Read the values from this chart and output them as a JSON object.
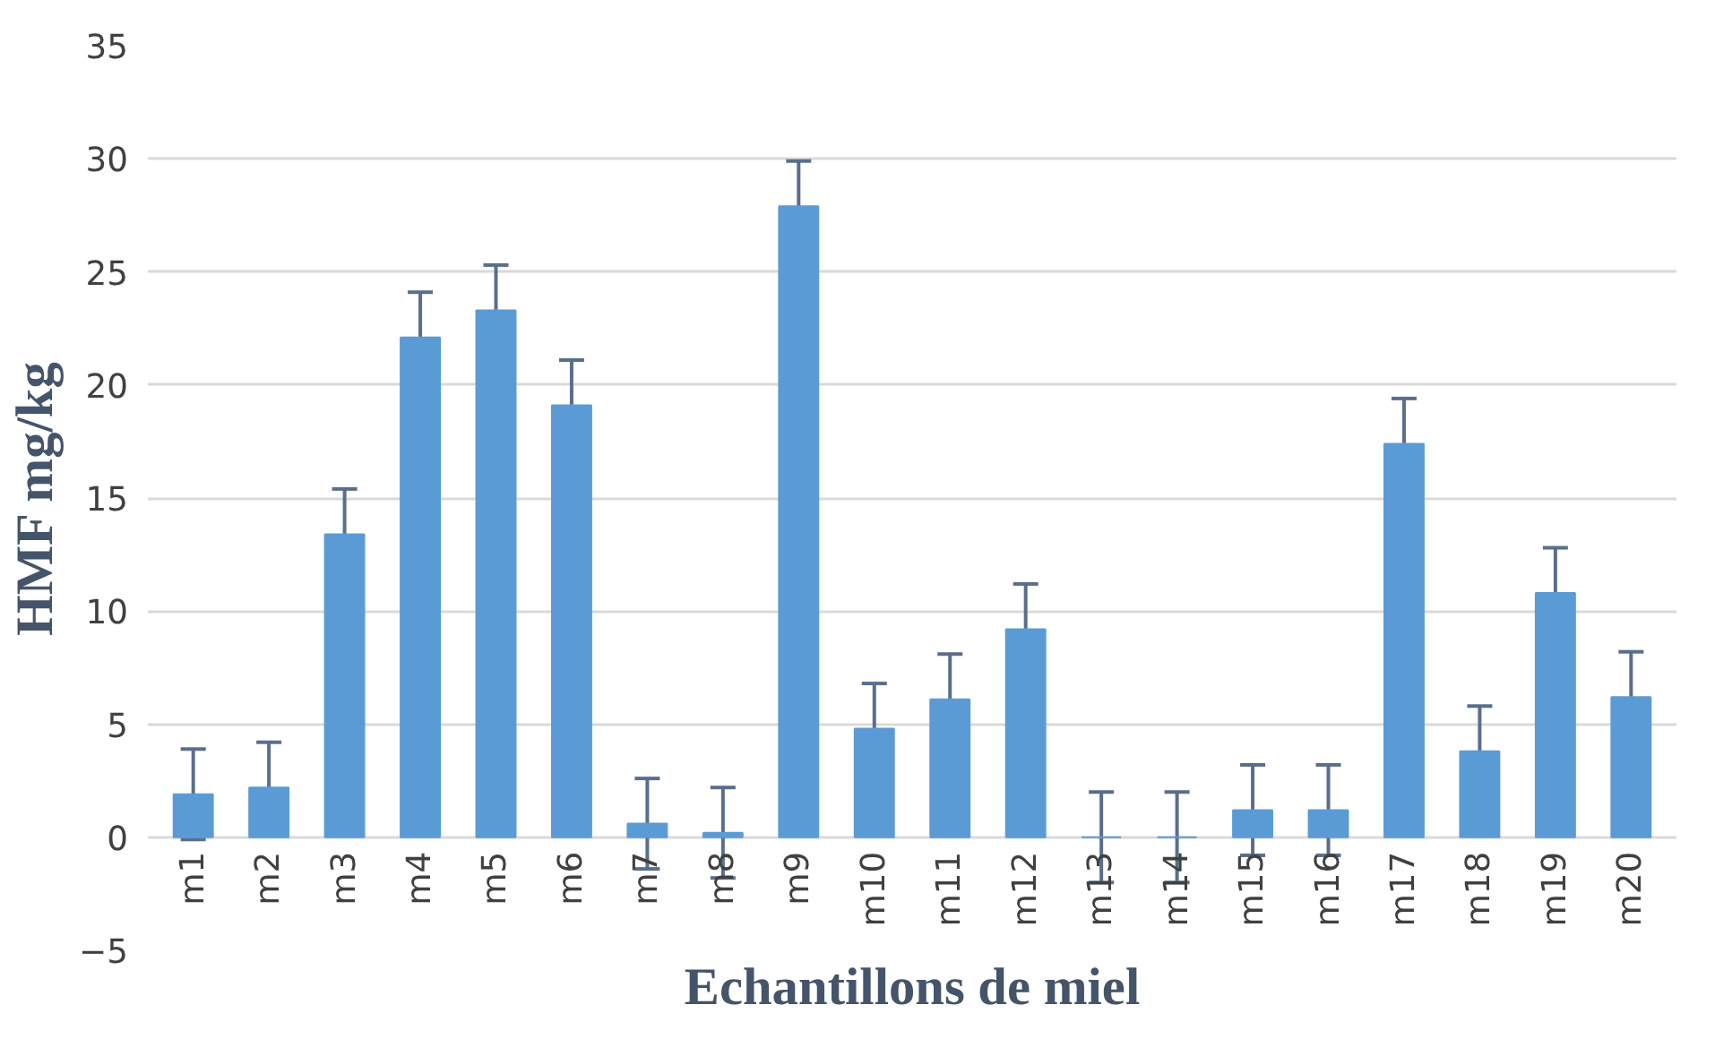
{
  "chart_data": {
    "type": "bar",
    "xlabel": "Echantillons de miel",
    "ylabel": "HMF mg/kg",
    "categories": [
      "m1",
      "m2",
      "m3",
      "m4",
      "m5",
      "m6",
      "m7",
      "m8",
      "m9",
      "m10",
      "m11",
      "m12",
      "m13",
      "m14",
      "m15",
      "m16",
      "m17",
      "m18",
      "m19",
      "m20"
    ],
    "values": [
      1.9,
      2.2,
      13.4,
      22.1,
      23.3,
      19.1,
      0.6,
      0.2,
      27.9,
      4.8,
      6.1,
      9.2,
      0,
      0,
      1.2,
      1.2,
      17.4,
      3.8,
      10.8,
      6.2
    ],
    "errors": [
      2,
      2,
      2,
      2,
      2,
      2,
      2,
      2,
      2,
      2,
      2,
      2,
      2,
      2,
      2,
      2,
      2,
      2,
      2,
      2
    ],
    "color": "#5b9bd5",
    "ylim": [
      -5,
      35
    ],
    "yticks": [
      -5,
      0,
      5,
      10,
      15,
      20,
      25,
      30,
      35
    ],
    "grid": "y"
  }
}
